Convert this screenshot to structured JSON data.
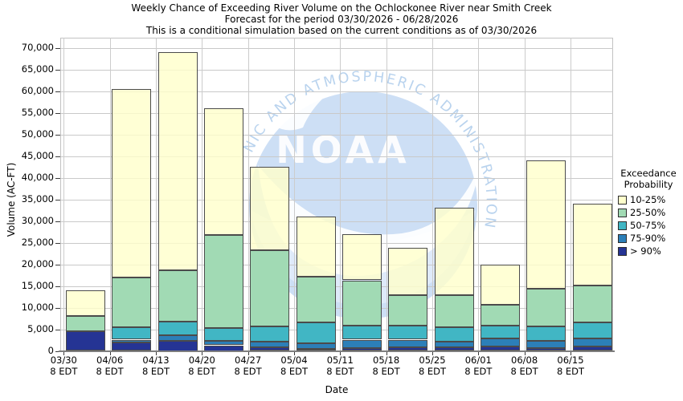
{
  "title": {
    "line1": "Weekly Chance of Exceeding River Volume on the Ochlockonee River near Smith Creek",
    "line2": "Forecast for the period 03/30/2026 - 06/28/2026",
    "line3": "This is a conditional simulation based on the current conditions as of 03/30/2026"
  },
  "y_axis": {
    "label": "Volume (AC-FT)",
    "tick_labels": [
      "0",
      "5,000",
      "10,000",
      "15,000",
      "20,000",
      "25,000",
      "30,000",
      "35,000",
      "40,000",
      "45,000",
      "50,000",
      "55,000",
      "60,000",
      "65,000",
      "70,000"
    ],
    "tick_step": 5000
  },
  "x_axis": {
    "label": "Date",
    "sublabel": "8 EDT"
  },
  "legend": {
    "title_line1": "Exceedance",
    "title_line2": "Probability",
    "entries": [
      {
        "label": "10-25%",
        "color": "#ffffcc"
      },
      {
        "label": "25-50%",
        "color": "#a1dab4"
      },
      {
        "label": "50-75%",
        "color": "#41b6c4"
      },
      {
        "label": "75-90%",
        "color": "#2c7fb8"
      },
      {
        "label": "> 90%",
        "color": "#253494"
      }
    ]
  },
  "watermark": {
    "name": "NOAA",
    "arc_text": "NIC AND ATMOSPHERIC ADMINISTRATION",
    "circle_color": "#cddff5",
    "lower_color": "#dfeafa",
    "text_color": "#b9d3ee",
    "logo_text_color": "#fbfcfe"
  },
  "chart_data": {
    "type": "bar",
    "stacked": true,
    "title": "Weekly Chance of Exceeding River Volume on the Ochlockonee River near Smith Creek",
    "xlabel": "Date",
    "ylabel": "Volume (AC-FT)",
    "ylim": [
      0,
      72300
    ],
    "grid": true,
    "legend_position": "right",
    "categories": [
      "03/30",
      "04/06",
      "04/13",
      "04/20",
      "04/27",
      "05/04",
      "05/11",
      "05/18",
      "05/25",
      "06/01",
      "06/08",
      "06/15"
    ],
    "category_sublabel": "8 EDT",
    "series": [
      {
        "name": "> 90%",
        "color": "#253494",
        "values": [
          4500,
          2000,
          2400,
          1300,
          900,
          500,
          600,
          800,
          800,
          1100,
          700,
          1000
        ]
      },
      {
        "name": "75-90%",
        "color": "#2c7fb8",
        "values": [
          0,
          600,
          1200,
          1100,
          1200,
          1200,
          2000,
          1800,
          1400,
          1700,
          1600,
          1800
        ]
      },
      {
        "name": "50-75%",
        "color": "#41b6c4",
        "values": [
          0,
          2900,
          3100,
          2900,
          3500,
          4900,
          3200,
          3200,
          3300,
          3100,
          3400,
          3700
        ]
      },
      {
        "name": "25-50%",
        "color": "#a1dab4",
        "values": [
          3500,
          11500,
          11900,
          21400,
          17600,
          10600,
          10500,
          7100,
          7300,
          4700,
          8700,
          8600
        ]
      },
      {
        "name": "10-25%",
        "color": "#ffffcc",
        "values": [
          6000,
          43500,
          50400,
          29300,
          19300,
          13800,
          10700,
          10900,
          20200,
          9400,
          29600,
          18900
        ]
      }
    ],
    "totals": [
      14000,
      60500,
      69000,
      56000,
      42500,
      31000,
      27000,
      23800,
      33000,
      20000,
      44000,
      34000
    ]
  }
}
